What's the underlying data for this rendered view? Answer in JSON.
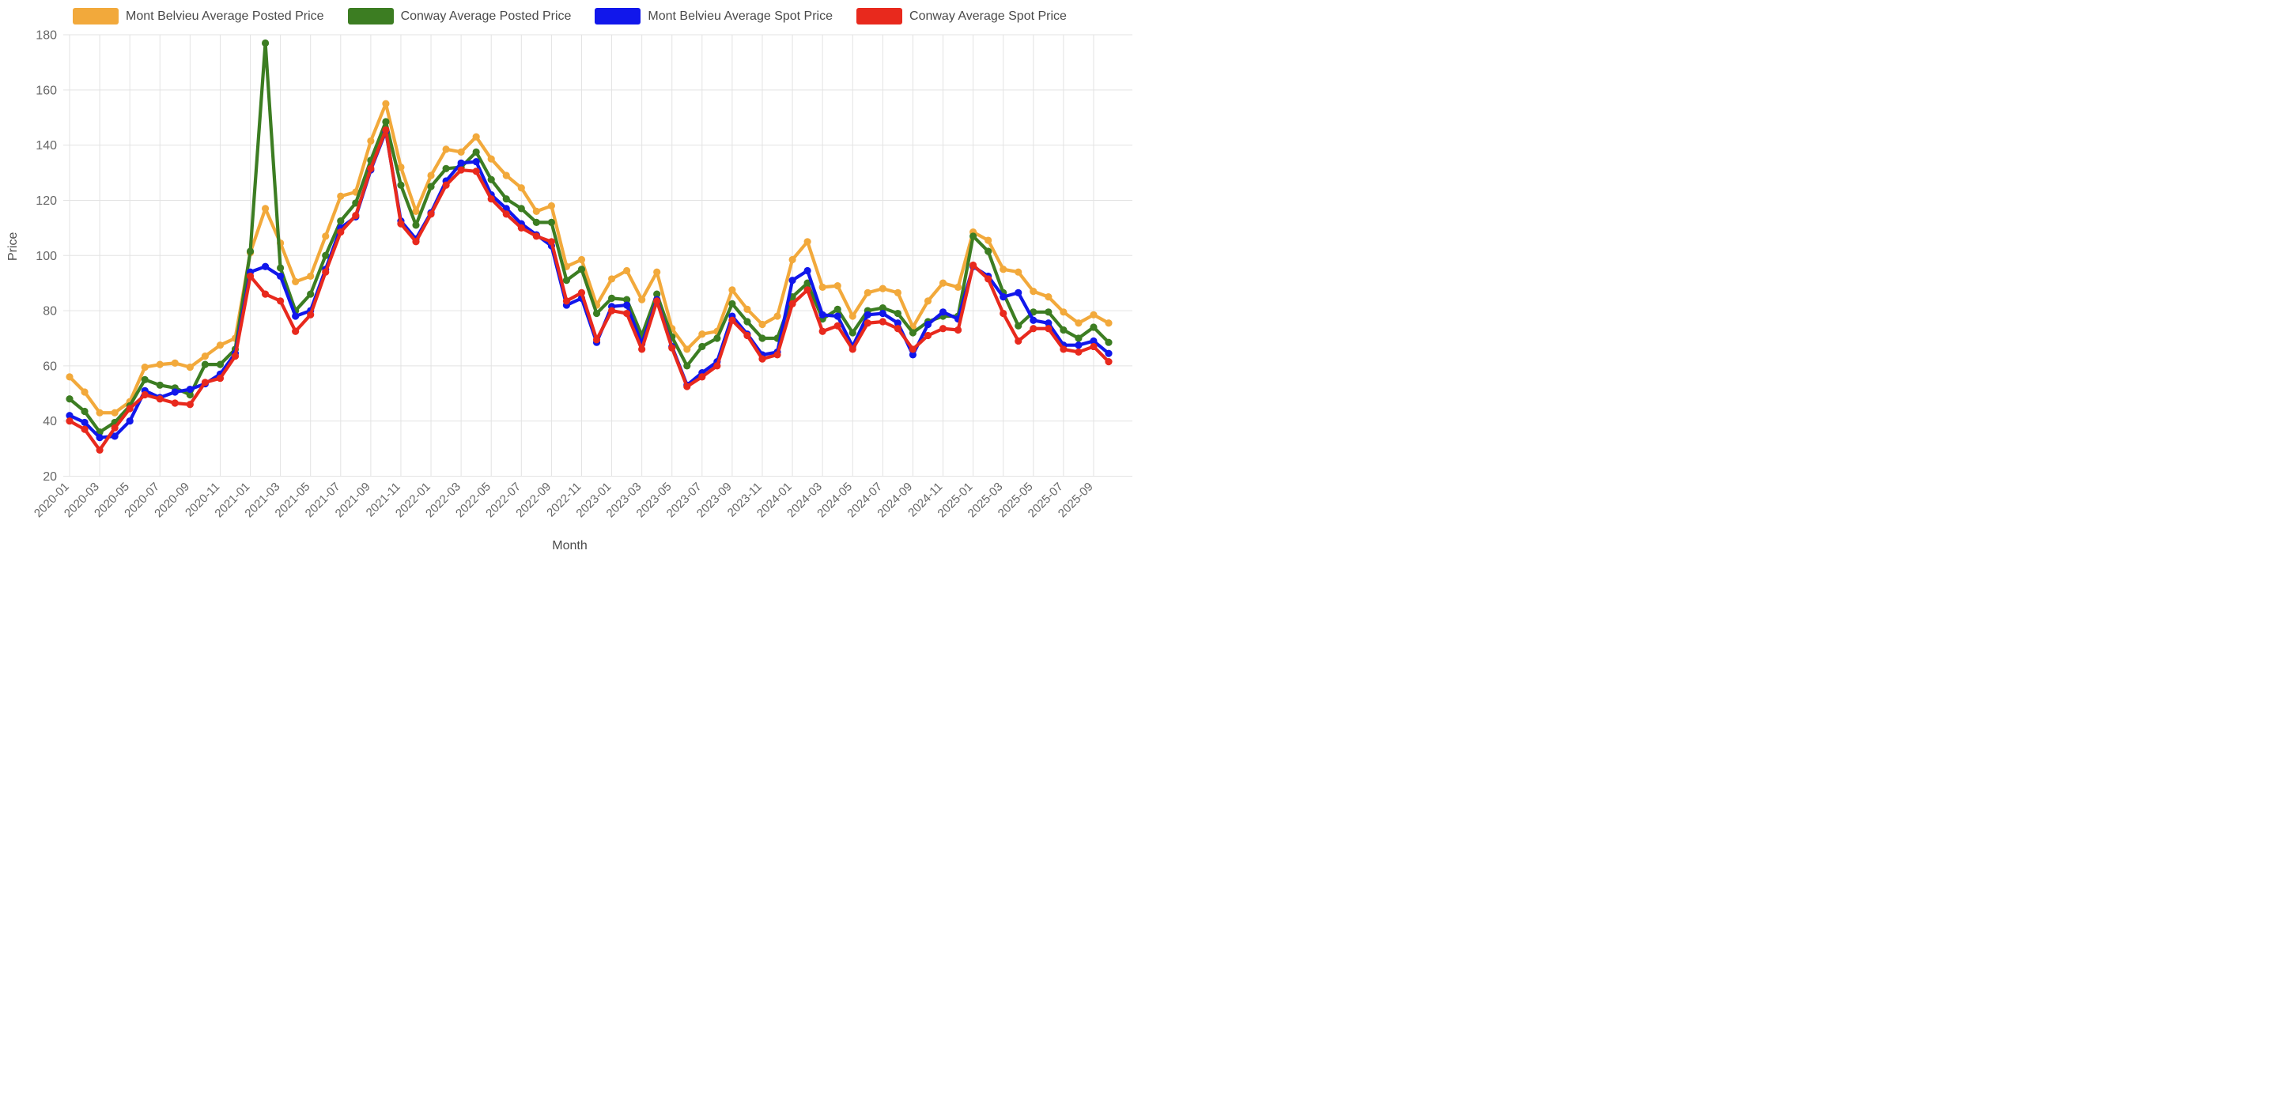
{
  "chart_data": {
    "type": "line",
    "title": "",
    "xlabel": "Month",
    "ylabel": "Price",
    "ylim": [
      20,
      180
    ],
    "ytick_step": 20,
    "grid": true,
    "legend_position": "top",
    "xtick_interval": 2,
    "x": [
      "2020-01",
      "2020-02",
      "2020-03",
      "2020-04",
      "2020-05",
      "2020-06",
      "2020-07",
      "2020-08",
      "2020-09",
      "2020-10",
      "2020-11",
      "2020-12",
      "2021-01",
      "2021-02",
      "2021-03",
      "2021-04",
      "2021-05",
      "2021-06",
      "2021-07",
      "2021-08",
      "2021-09",
      "2021-10",
      "2021-11",
      "2021-12",
      "2022-01",
      "2022-02",
      "2022-03",
      "2022-04",
      "2022-05",
      "2022-06",
      "2022-07",
      "2022-08",
      "2022-09",
      "2022-10",
      "2022-11",
      "2022-12",
      "2023-01",
      "2023-02",
      "2023-03",
      "2023-04",
      "2023-05",
      "2023-06",
      "2023-07",
      "2023-08",
      "2023-09",
      "2023-10",
      "2023-11",
      "2023-12",
      "2024-01",
      "2024-02",
      "2024-03",
      "2024-04",
      "2024-05",
      "2024-06",
      "2024-07",
      "2024-08",
      "2024-09",
      "2024-10",
      "2024-11",
      "2024-12",
      "2025-01",
      "2025-02",
      "2025-03",
      "2025-04",
      "2025-05",
      "2025-06",
      "2025-07",
      "2025-08",
      "2025-09",
      "2025-10"
    ],
    "series": [
      {
        "name": "Mont Belvieu Average Posted Price",
        "color": "#F2A93B",
        "values": [
          56,
          50.5,
          43,
          43,
          47,
          59.5,
          60.5,
          61,
          59.5,
          63.5,
          67.5,
          70,
          101,
          117,
          104.5,
          90.5,
          92.5,
          107,
          121.5,
          123,
          141.5,
          155,
          132,
          116,
          129,
          138.5,
          137.5,
          143,
          135,
          129,
          124.5,
          116,
          118,
          96,
          98.5,
          82,
          91.5,
          94.5,
          84,
          94,
          73.5,
          66,
          71.5,
          72.5,
          87.5,
          80.5,
          75,
          78,
          98.5,
          105,
          88.5,
          89,
          78,
          86.5,
          88,
          86.5,
          74,
          83.5,
          90,
          88.5,
          108.5,
          105.5,
          95,
          94,
          87,
          85,
          79.5,
          75.5,
          78.5,
          75.5
        ]
      },
      {
        "name": "Conway Average Posted Price",
        "color": "#3C7D22",
        "values": [
          48,
          43.5,
          36,
          39.5,
          45.5,
          55,
          53,
          52,
          49.5,
          60.5,
          60.5,
          66,
          101.5,
          177,
          95.5,
          80,
          86,
          100,
          112.5,
          119,
          134.5,
          148.5,
          125.5,
          111,
          125,
          131.5,
          132,
          137.5,
          127.5,
          120.5,
          117,
          112,
          112,
          91,
          95,
          79,
          84.5,
          84,
          71,
          86,
          70.5,
          60,
          67,
          70,
          82.5,
          76,
          70,
          70,
          85,
          90,
          77,
          80.5,
          72,
          80,
          81,
          79,
          72,
          76,
          78,
          78,
          107,
          101.5,
          86.5,
          74.5,
          79.5,
          79.5,
          73,
          70,
          74,
          68.5
        ]
      },
      {
        "name": "Mont Belvieu Average Spot Price",
        "color": "#1117EB",
        "values": [
          42,
          39.5,
          34,
          34.5,
          40,
          51,
          48.5,
          50.5,
          51.5,
          53.5,
          57,
          64.5,
          94,
          96,
          92.5,
          78,
          80,
          95,
          110,
          114,
          131,
          145,
          112.5,
          106,
          115.5,
          127,
          133.5,
          134,
          122,
          117,
          111.5,
          107.5,
          103.5,
          82,
          84.5,
          68.5,
          81.5,
          82,
          68,
          84,
          67,
          53,
          57.5,
          61.5,
          78,
          71.5,
          64,
          65,
          91,
          94.5,
          78.5,
          78,
          67,
          78.5,
          79,
          75.5,
          64,
          75,
          79.5,
          77,
          96,
          92.5,
          85,
          86.5,
          76.5,
          75.5,
          67.5,
          67.5,
          69,
          64.5
        ]
      },
      {
        "name": "Conway Average Spot Price",
        "color": "#E8291D",
        "values": [
          40,
          37,
          29.5,
          37.5,
          44.5,
          49.5,
          48,
          46.5,
          46,
          54,
          55.5,
          63.5,
          92.5,
          86,
          83.5,
          72.5,
          78.5,
          94,
          108.5,
          114.5,
          131.5,
          145.5,
          111.5,
          105,
          115,
          125.5,
          131,
          130.5,
          120.5,
          115,
          110,
          107,
          105,
          83.5,
          86.5,
          69.5,
          80,
          79,
          66,
          83.5,
          66.5,
          52.5,
          56,
          60,
          76.5,
          71,
          62.5,
          64,
          82.5,
          87.5,
          72.5,
          74.5,
          66,
          75.5,
          76,
          73.5,
          66,
          71,
          73.5,
          73,
          96.5,
          91.5,
          79,
          69,
          73.5,
          73.5,
          66,
          65,
          67,
          61.5
        ]
      }
    ],
    "axis_text_color": "#666666",
    "grid_color": "#e3e3e3"
  }
}
